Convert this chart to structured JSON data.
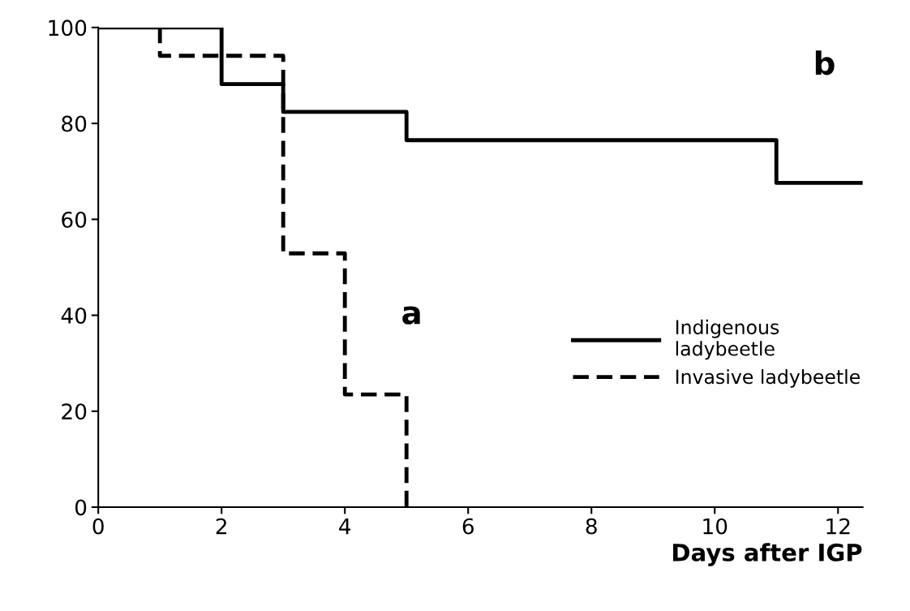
{
  "chart_data": {
    "type": "step",
    "xlabel": "Days after IGP",
    "xlim": [
      0,
      12.4
    ],
    "ylim": [
      0,
      100
    ],
    "xticks": [
      0,
      2,
      4,
      6,
      8,
      10,
      12
    ],
    "yticks": [
      0,
      20,
      40,
      60,
      80,
      100
    ],
    "grid": false,
    "legend": "right",
    "marker": "none",
    "series": [
      {
        "name": "Indigenous ladybeetle",
        "color": "#000000",
        "line_style": "solid",
        "x": [
          0,
          2,
          3,
          5,
          11,
          12.4
        ],
        "values": [
          100,
          88.2,
          82.4,
          76.5,
          67.6,
          67.6
        ]
      },
      {
        "name": "Invasive ladybeetle",
        "color": "#000000",
        "line_style": "dashed",
        "x": [
          1,
          1,
          3,
          4,
          5
        ],
        "values": [
          100,
          94.1,
          52.9,
          23.5,
          0
        ]
      }
    ],
    "annotations": [
      "a",
      "b"
    ]
  }
}
